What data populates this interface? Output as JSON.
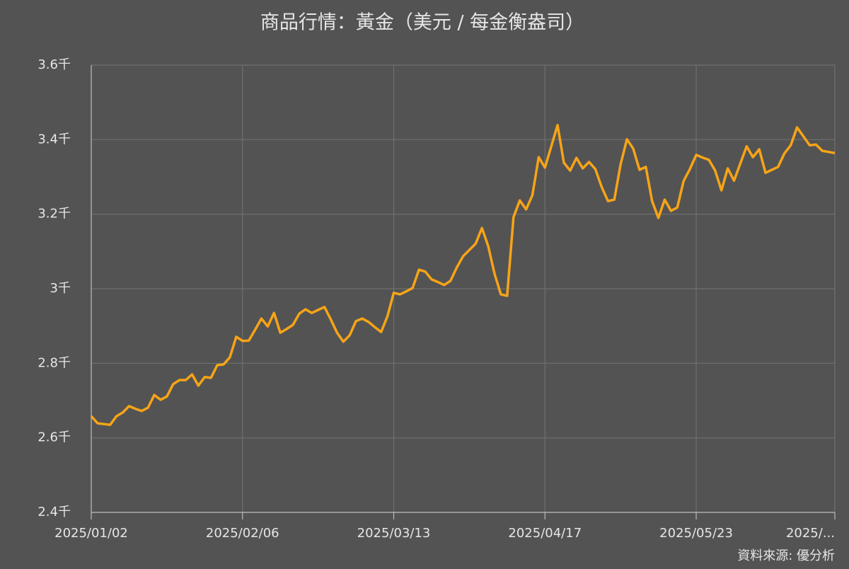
{
  "chart_data": {
    "type": "line",
    "title": "商品行情：黃金（美元 / 每金衡盎司）",
    "source": "資料來源: 優分析",
    "categories": [
      "2025/01/02",
      null,
      null,
      null,
      null,
      null,
      null,
      null,
      null,
      null,
      null,
      null,
      null,
      null,
      null,
      null,
      null,
      null,
      null,
      null,
      null,
      null,
      null,
      null,
      "2025/02/06",
      null,
      null,
      null,
      null,
      null,
      null,
      null,
      null,
      null,
      null,
      null,
      null,
      null,
      null,
      null,
      null,
      null,
      null,
      null,
      null,
      null,
      null,
      null,
      "2025/03/13",
      null,
      null,
      null,
      null,
      null,
      null,
      null,
      null,
      null,
      null,
      null,
      null,
      null,
      null,
      null,
      null,
      null,
      null,
      null,
      null,
      null,
      null,
      null,
      "2025/04/17",
      null,
      null,
      null,
      null,
      null,
      null,
      null,
      null,
      null,
      null,
      null,
      null,
      null,
      null,
      null,
      null,
      null,
      null,
      null,
      null,
      null,
      null,
      null,
      "2025/05/23",
      null,
      null,
      null,
      null,
      null,
      null,
      null,
      null,
      null,
      null,
      null,
      null,
      null,
      null,
      null,
      null,
      null,
      null,
      null,
      null,
      null,
      "2025/..."
    ],
    "values": [
      2658,
      2639,
      2637,
      2635,
      2658,
      2668,
      2685,
      2678,
      2672,
      2681,
      2715,
      2702,
      2711,
      2744,
      2755,
      2755,
      2770,
      2740,
      2763,
      2761,
      2795,
      2797,
      2816,
      2871,
      2860,
      2861,
      2890,
      2920,
      2899,
      2935,
      2882,
      2892,
      2903,
      2933,
      2945,
      2935,
      2943,
      2951,
      2918,
      2882,
      2858,
      2875,
      2913,
      2920,
      2911,
      2897,
      2884,
      2926,
      2989,
      2985,
      2993,
      3002,
      3051,
      3046,
      3025,
      3018,
      3010,
      3021,
      3057,
      3087,
      3104,
      3121,
      3163,
      3114,
      3040,
      2985,
      2981,
      3192,
      3237,
      3213,
      3251,
      3353,
      3325,
      3382,
      3439,
      3338,
      3317,
      3351,
      3323,
      3340,
      3321,
      3273,
      3235,
      3239,
      3334,
      3401,
      3376,
      3319,
      3327,
      3235,
      3190,
      3239,
      3209,
      3218,
      3289,
      3321,
      3359,
      3352,
      3346,
      3317,
      3264,
      3323,
      3290,
      3336,
      3382,
      3353,
      3374,
      3311,
      3319,
      3327,
      3363,
      3385,
      3433,
      3409,
      3385,
      3387,
      3370,
      3367,
      3364
    ],
    "color": "#f7a417",
    "ylim": [
      2400,
      3600
    ],
    "yticks": [
      {
        "value": 2400,
        "label": "2.4千"
      },
      {
        "value": 2600,
        "label": "2.6千"
      },
      {
        "value": 2800,
        "label": "2.8千"
      },
      {
        "value": 3000,
        "label": "3千"
      },
      {
        "value": 3200,
        "label": "3.2千"
      },
      {
        "value": 3400,
        "label": "3.4千"
      },
      {
        "value": 3600,
        "label": "3.6千"
      }
    ],
    "grid": true
  }
}
